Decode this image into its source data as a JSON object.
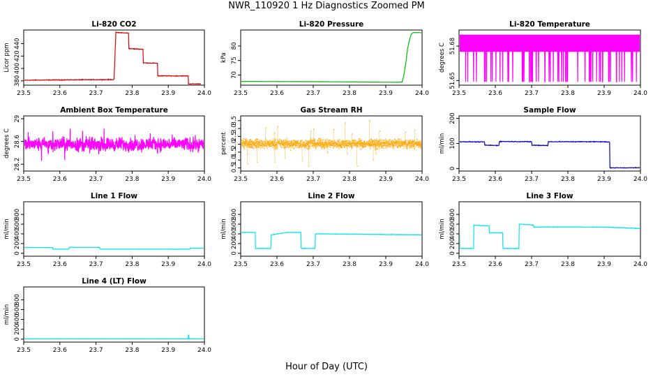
{
  "page": {
    "title": "NWR_110920  1 Hz Diagnostics Zoomed PM",
    "xlabel": "Hour of Day (UTC)"
  },
  "chart_data": [
    {
      "type": "line",
      "title": "Li-820 CO2",
      "ylabel": "Licor ppm",
      "color": "#dd0000",
      "xlim": [
        23.5,
        24.0
      ],
      "xticks": [
        23.5,
        23.6,
        23.7,
        23.8,
        23.9,
        24.0
      ],
      "ylim": [
        373,
        462
      ],
      "yticks": [
        380,
        400,
        420,
        440
      ],
      "series": [
        {
          "noise": 0.8,
          "points": [
            [
              23.5,
              381
            ],
            [
              23.6,
              381.5
            ],
            [
              23.75,
              382
            ],
            [
              23.755,
              458
            ],
            [
              23.79,
              457
            ],
            [
              23.791,
              432
            ],
            [
              23.83,
              431
            ],
            [
              23.831,
              409
            ],
            [
              23.87,
              408.5
            ],
            [
              23.871,
              388
            ],
            [
              23.955,
              388
            ],
            [
              23.956,
              375
            ],
            [
              23.99,
              375
            ]
          ]
        }
      ]
    },
    {
      "type": "line",
      "title": "Li-820 Pressure",
      "ylabel": "kPa",
      "color": "#00bb00",
      "xlim": [
        23.5,
        24.0
      ],
      "xticks": [
        23.5,
        23.6,
        23.7,
        23.8,
        23.9,
        24.0
      ],
      "ylim": [
        66.5,
        85.5
      ],
      "yticks": [
        70,
        75,
        80
      ],
      "series": [
        {
          "noise": 0.05,
          "points": [
            [
              23.5,
              67.8
            ],
            [
              23.7,
              67.7
            ],
            [
              23.93,
              67.5
            ],
            [
              23.945,
              67.6
            ],
            [
              23.95,
              70
            ],
            [
              23.955,
              74
            ],
            [
              23.96,
              79
            ],
            [
              23.965,
              82
            ],
            [
              23.97,
              84
            ],
            [
              23.975,
              84.6
            ],
            [
              24.0,
              84.6
            ]
          ]
        }
      ]
    },
    {
      "type": "line",
      "title": "Li-820 Temperature",
      "ylabel": "degrees C",
      "color": "#ff00ff",
      "xlim": [
        23.5,
        24.0
      ],
      "xticks": [
        23.5,
        23.6,
        23.7,
        23.8,
        23.9,
        24.0
      ],
      "ylim": [
        51.646,
        51.694
      ],
      "yticks": [
        51.65,
        51.68
      ],
      "series": [
        {
          "pattern": "toggle",
          "x0": 23.5,
          "x1": 24.0,
          "n": 900,
          "levels": [
            51.69,
            51.675,
            51.649
          ]
        }
      ]
    },
    {
      "type": "line",
      "title": "Ambient Box Temperature",
      "ylabel": "degrees C",
      "color": "#ff00ff",
      "xlim": [
        23.5,
        24.0
      ],
      "xticks": [
        23.5,
        23.6,
        23.7,
        23.8,
        23.9,
        24.0
      ],
      "ylim": [
        28.08,
        29.05
      ],
      "yticks": [
        28.2,
        28.6,
        29.0
      ],
      "series": [
        {
          "pattern": "noise",
          "x0": 23.5,
          "x1": 24.0,
          "n": 900,
          "center": 28.55,
          "spread": 0.18,
          "spikes": 0.32
        }
      ]
    },
    {
      "type": "scatter",
      "title": "Gas Stream RH",
      "ylabel": "percent",
      "color": "#ffa500",
      "xlim": [
        23.5,
        24.0
      ],
      "xticks": [
        23.5,
        23.6,
        23.7,
        23.8,
        23.9,
        24.0
      ],
      "ylim": [
        0.3,
        3.8
      ],
      "yticks": [
        0.5,
        1.5,
        2.5,
        3.5
      ],
      "ytickLabels": [
        "0.5",
        "1.0",
        "1.5",
        "2.0",
        "2.5",
        "3.0",
        "3.5"
      ],
      "ytickValues": [
        0.5,
        1.0,
        1.5,
        2.0,
        2.5,
        3.0,
        3.5
      ],
      "series": [
        {
          "pattern": "noise",
          "x0": 23.5,
          "x1": 24.0,
          "n": 1400,
          "center": 2.05,
          "spread": 0.42,
          "spikes": 1.5
        }
      ]
    },
    {
      "type": "line",
      "title": "Sample Flow",
      "ylabel": "ml/min",
      "color": "#0000cc",
      "xlim": [
        23.5,
        24.0
      ],
      "xticks": [
        23.5,
        23.6,
        23.7,
        23.8,
        23.9,
        24.0
      ],
      "ylim": [
        -10,
        210
      ],
      "yticks": [
        0,
        100,
        200
      ],
      "series": [
        {
          "noise": 2,
          "points": [
            [
              23.5,
              107
            ],
            [
              23.57,
              106
            ],
            [
              23.571,
              93
            ],
            [
              23.61,
              92
            ],
            [
              23.611,
              108
            ],
            [
              23.7,
              107
            ],
            [
              23.701,
              93
            ],
            [
              23.745,
              92
            ],
            [
              23.746,
              107
            ],
            [
              23.9,
              107
            ],
            [
              23.915,
              105
            ],
            [
              23.916,
              3
            ],
            [
              24.0,
              3
            ]
          ]
        }
      ]
    },
    {
      "type": "line",
      "title": "Line 1 Flow",
      "ylabel": "ml/min",
      "color": "#00e5ee",
      "xlim": [
        23.5,
        24.0
      ],
      "xticks": [
        23.5,
        23.6,
        23.7,
        23.8,
        23.9,
        24.0
      ],
      "ylim": [
        -60,
        1060
      ],
      "yticks": [
        0,
        200,
        400,
        600,
        800
      ],
      "series": [
        {
          "noise": 4,
          "points": [
            [
              23.5,
              120
            ],
            [
              23.58,
              118
            ],
            [
              23.581,
              85
            ],
            [
              23.625,
              85
            ],
            [
              23.626,
              125
            ],
            [
              23.71,
              122
            ],
            [
              23.711,
              85
            ],
            [
              23.96,
              85
            ],
            [
              23.961,
              105
            ],
            [
              24.0,
              105
            ]
          ]
        }
      ]
    },
    {
      "type": "line",
      "title": "Line 2 Flow",
      "ylabel": "ml/min",
      "color": "#00e5ee",
      "xlim": [
        23.5,
        24.0
      ],
      "xticks": [
        23.5,
        23.6,
        23.7,
        23.8,
        23.9,
        24.0
      ],
      "ylim": [
        -60,
        1060
      ],
      "yticks": [
        0,
        200,
        400,
        600,
        800
      ],
      "series": [
        {
          "noise": 7,
          "points": [
            [
              23.5,
              430
            ],
            [
              23.54,
              430
            ],
            [
              23.541,
              100
            ],
            [
              23.583,
              100
            ],
            [
              23.584,
              380
            ],
            [
              23.63,
              430
            ],
            [
              23.666,
              430
            ],
            [
              23.667,
              100
            ],
            [
              23.705,
              100
            ],
            [
              23.706,
              400
            ],
            [
              24.0,
              380
            ]
          ]
        }
      ]
    },
    {
      "type": "line",
      "title": "Line 3 Flow",
      "ylabel": "ml/min",
      "color": "#00e5ee",
      "xlim": [
        23.5,
        24.0
      ],
      "xticks": [
        23.5,
        23.6,
        23.7,
        23.8,
        23.9,
        24.0
      ],
      "ylim": [
        -60,
        1060
      ],
      "yticks": [
        0,
        200,
        400,
        600,
        800
      ],
      "series": [
        {
          "noise": 8,
          "points": [
            [
              23.5,
              100
            ],
            [
              23.501,
              540
            ],
            [
              23.502,
              100
            ],
            [
              23.54,
              100
            ],
            [
              23.541,
              580
            ],
            [
              23.583,
              560
            ],
            [
              23.584,
              420
            ],
            [
              23.62,
              420
            ],
            [
              23.621,
              100
            ],
            [
              23.665,
              100
            ],
            [
              23.666,
              600
            ],
            [
              23.705,
              580
            ],
            [
              23.706,
              540
            ],
            [
              23.9,
              540
            ],
            [
              24.0,
              510
            ]
          ]
        }
      ]
    },
    {
      "type": "line",
      "title": "Line 4 (LT) Flow",
      "ylabel": "ml/min",
      "color": "#00e5ee",
      "xlim": [
        23.5,
        24.0
      ],
      "xticks": [
        23.5,
        23.6,
        23.7,
        23.8,
        23.9,
        24.0
      ],
      "ylim": [
        -60,
        1060
      ],
      "yticks": [
        0,
        200,
        400,
        600,
        800
      ],
      "series": [
        {
          "noise": 2,
          "points": [
            [
              23.5,
              5
            ],
            [
              23.955,
              5
            ],
            [
              23.956,
              90
            ],
            [
              23.958,
              5
            ],
            [
              24.0,
              5
            ]
          ]
        }
      ]
    }
  ]
}
